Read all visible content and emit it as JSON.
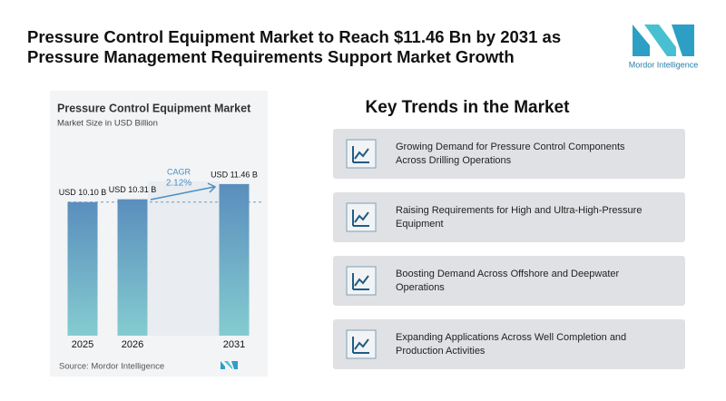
{
  "header": {
    "title_lines": [
      "Pressure Control Equipment Market to Reach $11.46 Bn by 2031 as",
      "Pressure Management Requirements Support Market Growth"
    ],
    "logo": "Mordor Intelligence"
  },
  "chart_data": {
    "type": "bar",
    "title": "Pressure Control Equipment Market",
    "subtitle": "Market Size in USD Billion",
    "categories": [
      "2025",
      "2026",
      "2031"
    ],
    "values": [
      10.1,
      10.31,
      11.46
    ],
    "value_labels": [
      "USD 10.10 B",
      "USD 10.31 B",
      "USD 11.46 B"
    ],
    "annotations": {
      "cagr_label": "CAGR",
      "cagr": "2.12%"
    },
    "source": "Source: Mordor Intelligence",
    "color_top": "#5a8ebd",
    "color_bottom": "#84ccd0",
    "ylim": [
      0,
      12
    ]
  },
  "trends": {
    "title": "Key Trends in the Market",
    "items": [
      [
        "Growing Demand for Pressure Control Components",
        "Across Drilling Operations"
      ],
      [
        "Raising Requirements for High and Ultra-High-Pressure",
        "Equipment"
      ],
      [
        "Boosting Demand Across Offshore and Deepwater",
        "Operations"
      ],
      [
        "Expanding Applications Across Well Completion and",
        "Production Activities"
      ]
    ]
  }
}
